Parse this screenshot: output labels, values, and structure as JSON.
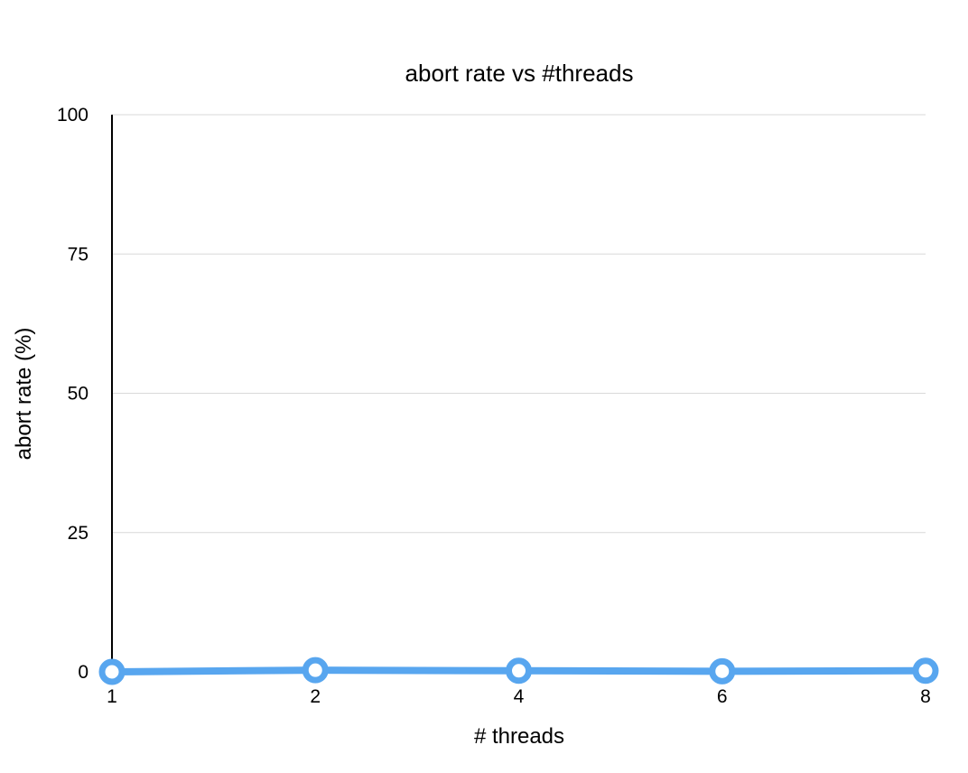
{
  "chart_data": {
    "type": "line",
    "title": "abort rate vs #threads",
    "xlabel": "# threads",
    "ylabel": "abort rate (%)",
    "categories": [
      "1",
      "2",
      "4",
      "6",
      "8"
    ],
    "series": [
      {
        "values": [
          0.0,
          0.3,
          0.2,
          0.1,
          0.2
        ],
        "color": "#58a6ef"
      }
    ],
    "ylim": [
      0,
      100
    ],
    "yticks": [
      0,
      25,
      50,
      75,
      100
    ],
    "grid": true,
    "legend": "none",
    "marker": "hollow-circle"
  }
}
